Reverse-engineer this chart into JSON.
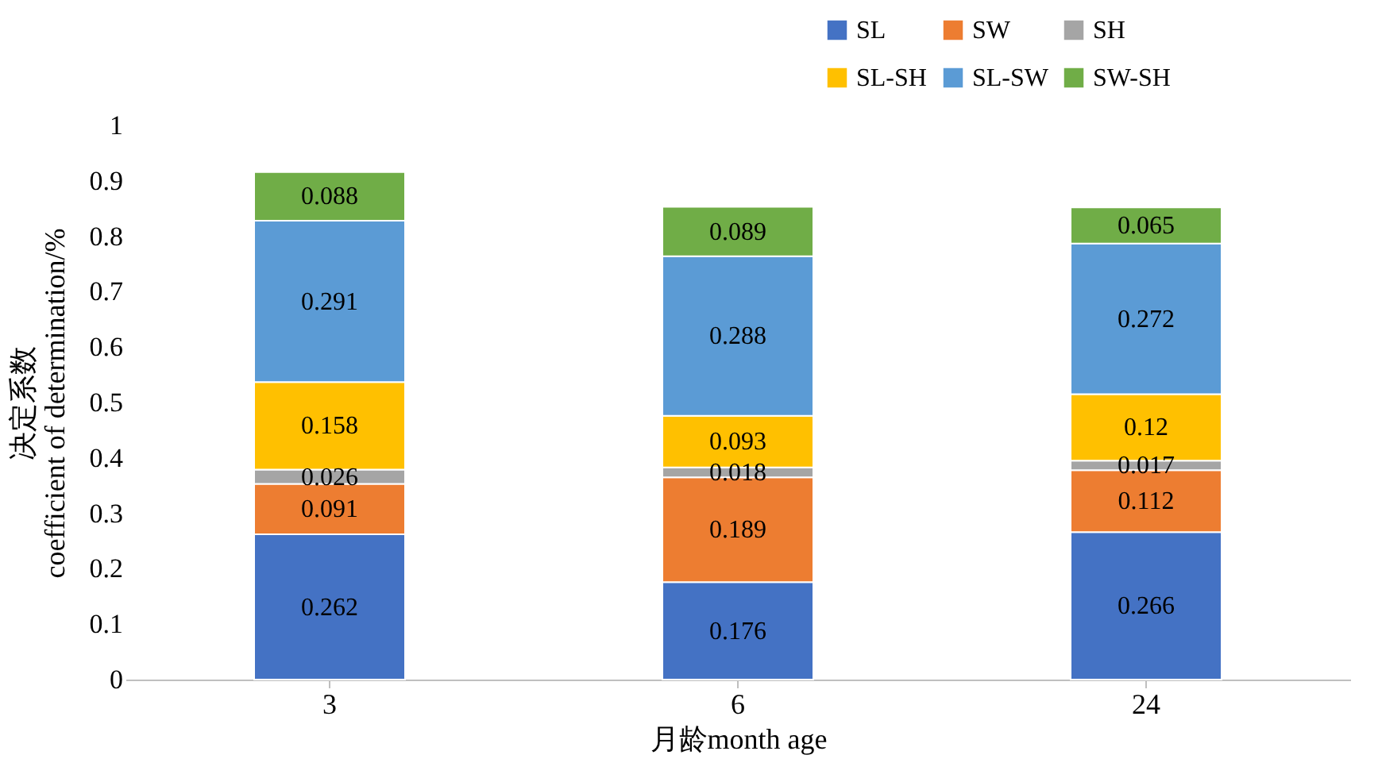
{
  "chart_data": {
    "type": "bar",
    "stacked": true,
    "xlabel": "月龄month age",
    "ylabel": "决定系数\ncoefficient of determination/%",
    "categories": [
      "3",
      "6",
      "24"
    ],
    "series": [
      {
        "name": "SL",
        "color": "#4472c4",
        "values": [
          0.262,
          0.176,
          0.266
        ]
      },
      {
        "name": "SW",
        "color": "#ed7d31",
        "values": [
          0.091,
          0.189,
          0.112
        ]
      },
      {
        "name": "SH",
        "color": "#a5a5a5",
        "values": [
          0.026,
          0.018,
          0.017
        ]
      },
      {
        "name": "SL-SH",
        "color": "#ffc000",
        "values": [
          0.158,
          0.093,
          0.12
        ]
      },
      {
        "name": "SL-SW",
        "color": "#5b9bd5",
        "values": [
          0.291,
          0.288,
          0.272
        ]
      },
      {
        "name": "SW-SH",
        "color": "#70ad47",
        "values": [
          0.088,
          0.089,
          0.065
        ]
      }
    ],
    "ylim": [
      0,
      1
    ],
    "yticks": [
      0,
      0.1,
      0.2,
      0.3,
      0.4,
      0.5,
      0.6,
      0.7,
      0.8,
      0.9,
      1
    ],
    "data_labels": true,
    "grid": false,
    "legend": "top right"
  }
}
